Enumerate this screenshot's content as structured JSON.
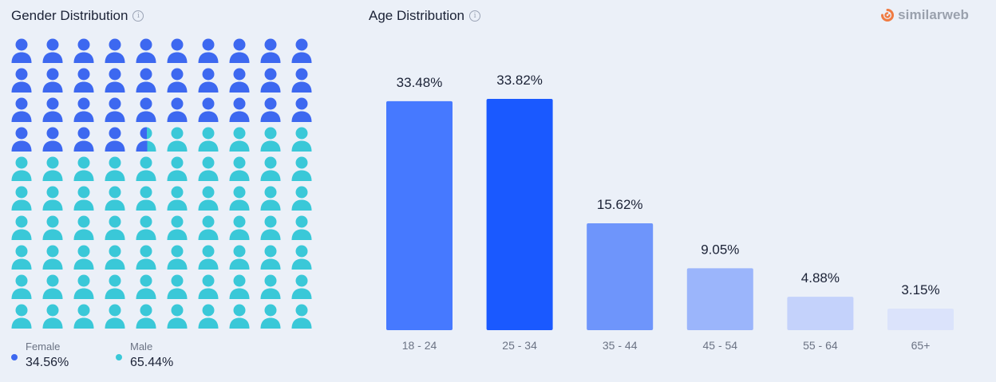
{
  "gender": {
    "title": "Gender Distribution",
    "info_glyph": "i",
    "total_icons": 100,
    "female": {
      "label": "Female",
      "value": "34.56%",
      "share": 34.56,
      "color": "#3d68f0"
    },
    "male": {
      "label": "Male",
      "value": "65.44%",
      "share": 65.44,
      "color": "#3ac8d8"
    },
    "icon": "person-icon"
  },
  "age": {
    "title": "Age Distribution",
    "info_glyph": "i"
  },
  "brand": {
    "name": "similarweb",
    "logo_icon": "similarweb-logo-icon",
    "color": "#f07b42"
  },
  "chart_data": {
    "type": "bar",
    "title": "Age Distribution",
    "categories": [
      "18 - 24",
      "25 - 34",
      "35 - 44",
      "45 - 54",
      "55 - 64",
      "65+"
    ],
    "values": [
      33.48,
      33.82,
      15.62,
      9.05,
      4.88,
      3.15
    ],
    "value_labels": [
      "33.48%",
      "33.82%",
      "15.62%",
      "9.05%",
      "4.88%",
      "3.15%"
    ],
    "colors": [
      "#4679ff",
      "#1a59ff",
      "#6e95fb",
      "#9bb5fb",
      "#c4d2fb",
      "#dbe3fb"
    ],
    "unit": "%",
    "xlabel": "",
    "ylabel": "",
    "grid": false
  }
}
